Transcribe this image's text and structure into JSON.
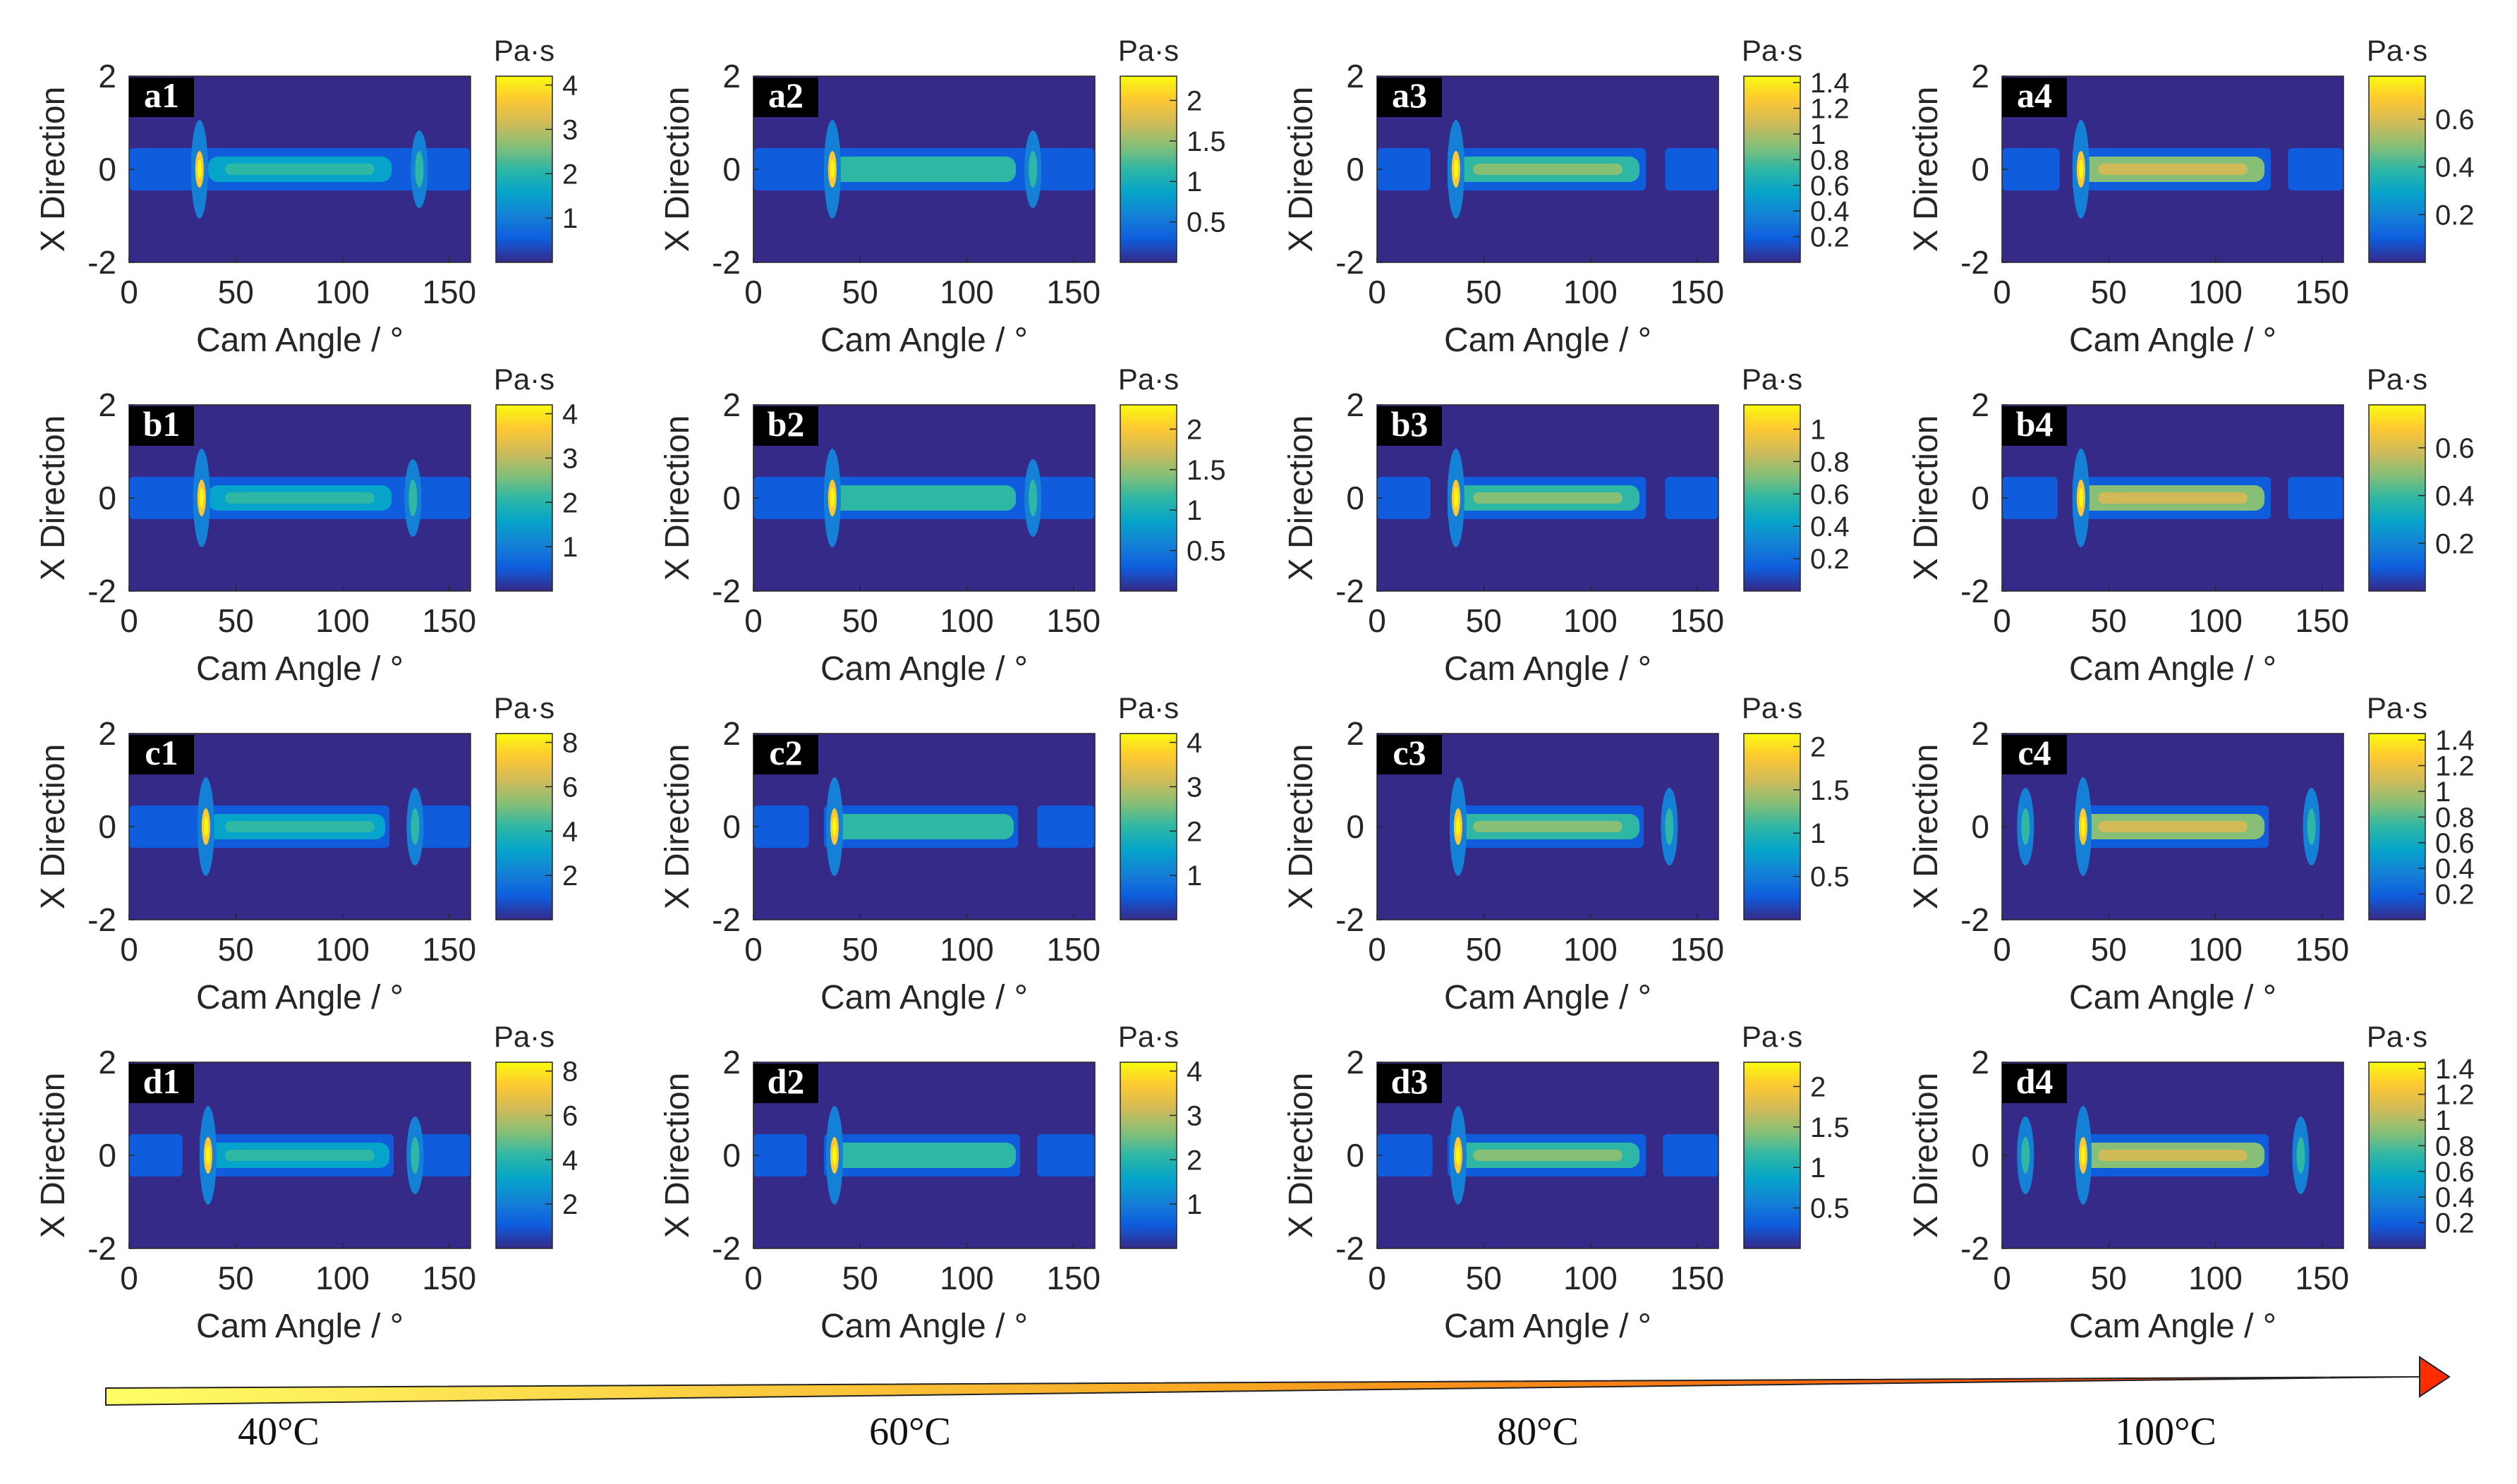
{
  "chart_data": [
    {
      "type": "heatmap",
      "panel_label": "a1",
      "xlabel": "Cam Angle / °",
      "ylabel": "X Direction",
      "xlim": [
        0,
        160
      ],
      "ylim": [
        -2,
        2
      ],
      "x_ticks": [
        "0",
        "50",
        "100",
        "150"
      ],
      "y_ticks": [
        "2",
        "0",
        "-2"
      ],
      "colorbar": {
        "unit": "Pa·s",
        "range": [
          0,
          4.2
        ],
        "ticks": [
          "4",
          "3",
          "2",
          "1"
        ]
      },
      "features": {
        "band": [
          0,
          160
        ],
        "groove_gaps": [],
        "peak_angles": [
          33,
          136
        ]
      }
    },
    {
      "type": "heatmap",
      "panel_label": "a2",
      "xlabel": "Cam Angle / °",
      "ylabel": "X Direction",
      "xlim": [
        0,
        160
      ],
      "ylim": [
        -2,
        2
      ],
      "x_ticks": [
        "0",
        "50",
        "100",
        "150"
      ],
      "y_ticks": [
        "2",
        "0",
        "-2"
      ],
      "colorbar": {
        "unit": "Pa·s",
        "range": [
          0,
          2.3
        ],
        "ticks": [
          "2",
          "1.5",
          "1",
          "0.5"
        ]
      },
      "features": {
        "band": [
          0,
          160
        ],
        "groove_gaps": [],
        "peak_angles": [
          37,
          131
        ]
      }
    },
    {
      "type": "heatmap",
      "panel_label": "a3",
      "xlabel": "Cam Angle / °",
      "ylabel": "X Direction",
      "xlim": [
        0,
        160
      ],
      "ylim": [
        -2,
        2
      ],
      "x_ticks": [
        "0",
        "50",
        "100",
        "150"
      ],
      "y_ticks": [
        "2",
        "0",
        "-2"
      ],
      "colorbar": {
        "unit": "Pa·s",
        "range": [
          0,
          1.45
        ],
        "ticks": [
          "1.4",
          "1.2",
          "1",
          "0.8",
          "0.6",
          "0.4",
          "0.2"
        ]
      },
      "features": {
        "band": [
          0,
          160
        ],
        "groove_gaps": [
          [
            25,
            33
          ],
          [
            126,
            135
          ]
        ],
        "peak_angles": [
          37
        ]
      }
    },
    {
      "type": "heatmap",
      "panel_label": "a4",
      "xlabel": "Cam Angle / °",
      "ylabel": "X Direction",
      "xlim": [
        0,
        160
      ],
      "ylim": [
        -2,
        2
      ],
      "x_ticks": [
        "0",
        "50",
        "100",
        "150"
      ],
      "y_ticks": [
        "2",
        "0",
        "-2"
      ],
      "colorbar": {
        "unit": "Pa·s",
        "range": [
          0,
          0.78
        ],
        "ticks": [
          "0.6",
          "0.4",
          "0.2"
        ]
      },
      "features": {
        "band": [
          0,
          160
        ],
        "groove_gaps": [
          [
            27,
            33
          ],
          [
            126,
            134
          ]
        ],
        "peak_angles": [
          37
        ]
      }
    },
    {
      "type": "heatmap",
      "panel_label": "b1",
      "xlabel": "Cam Angle / °",
      "ylabel": "X Direction",
      "xlim": [
        0,
        160
      ],
      "ylim": [
        -2,
        2
      ],
      "x_ticks": [
        "0",
        "50",
        "100",
        "150"
      ],
      "y_ticks": [
        "2",
        "0",
        "-2"
      ],
      "colorbar": {
        "unit": "Pa·s",
        "range": [
          0,
          4.2
        ],
        "ticks": [
          "4",
          "3",
          "2",
          "1"
        ]
      },
      "features": {
        "band": [
          0,
          160
        ],
        "groove_gaps": [],
        "peak_angles": [
          34,
          133
        ]
      }
    },
    {
      "type": "heatmap",
      "panel_label": "b2",
      "xlabel": "Cam Angle / °",
      "ylabel": "X Direction",
      "xlim": [
        0,
        160
      ],
      "ylim": [
        -2,
        2
      ],
      "x_ticks": [
        "0",
        "50",
        "100",
        "150"
      ],
      "y_ticks": [
        "2",
        "0",
        "-2"
      ],
      "colorbar": {
        "unit": "Pa·s",
        "range": [
          0,
          2.3
        ],
        "ticks": [
          "2",
          "1.5",
          "1",
          "0.5"
        ]
      },
      "features": {
        "band": [
          0,
          160
        ],
        "groove_gaps": [],
        "peak_angles": [
          37,
          131
        ]
      }
    },
    {
      "type": "heatmap",
      "panel_label": "b3",
      "xlabel": "Cam Angle / °",
      "ylabel": "X Direction",
      "xlim": [
        0,
        160
      ],
      "ylim": [
        -2,
        2
      ],
      "x_ticks": [
        "0",
        "50",
        "100",
        "150"
      ],
      "y_ticks": [
        "2",
        "0",
        "-2"
      ],
      "colorbar": {
        "unit": "Pa·s",
        "range": [
          0,
          1.15
        ],
        "ticks": [
          "1",
          "0.8",
          "0.6",
          "0.4",
          "0.2"
        ]
      },
      "features": {
        "band": [
          0,
          160
        ],
        "groove_gaps": [
          [
            25,
            33
          ],
          [
            126,
            135
          ]
        ],
        "peak_angles": [
          37
        ]
      }
    },
    {
      "type": "heatmap",
      "panel_label": "b4",
      "xlabel": "Cam Angle / °",
      "ylabel": "X Direction",
      "xlim": [
        0,
        160
      ],
      "ylim": [
        -2,
        2
      ],
      "x_ticks": [
        "0",
        "50",
        "100",
        "150"
      ],
      "y_ticks": [
        "2",
        "0",
        "-2"
      ],
      "colorbar": {
        "unit": "Pa·s",
        "range": [
          0,
          0.78
        ],
        "ticks": [
          "0.6",
          "0.4",
          "0.2"
        ]
      },
      "features": {
        "band": [
          0,
          160
        ],
        "groove_gaps": [
          [
            26,
            33
          ],
          [
            126,
            134
          ]
        ],
        "peak_angles": [
          37
        ]
      }
    },
    {
      "type": "heatmap",
      "panel_label": "c1",
      "xlabel": "Cam Angle / °",
      "ylabel": "X Direction",
      "xlim": [
        0,
        160
      ],
      "ylim": [
        -2,
        2
      ],
      "x_ticks": [
        "0",
        "50",
        "100",
        "150"
      ],
      "y_ticks": [
        "2",
        "0",
        "-2"
      ],
      "colorbar": {
        "unit": "Pa·s",
        "range": [
          0,
          8.4
        ],
        "ticks": [
          "8",
          "6",
          "4",
          "2"
        ]
      },
      "features": {
        "band": [
          0,
          160
        ],
        "groove_gaps": [
          [
            122,
            132
          ]
        ],
        "peak_angles": [
          36,
          134
        ]
      }
    },
    {
      "type": "heatmap",
      "panel_label": "c2",
      "xlabel": "Cam Angle / °",
      "ylabel": "X Direction",
      "xlim": [
        0,
        160
      ],
      "ylim": [
        -2,
        2
      ],
      "x_ticks": [
        "0",
        "50",
        "100",
        "150"
      ],
      "y_ticks": [
        "2",
        "0",
        "-2"
      ],
      "colorbar": {
        "unit": "Pa·s",
        "range": [
          0,
          4.2
        ],
        "ticks": [
          "4",
          "3",
          "2",
          "1"
        ]
      },
      "features": {
        "band": [
          0,
          160
        ],
        "groove_gaps": [
          [
            26,
            33
          ],
          [
            124,
            133
          ]
        ],
        "peak_angles": [
          38
        ]
      }
    },
    {
      "type": "heatmap",
      "panel_label": "c3",
      "xlabel": "Cam Angle / °",
      "ylabel": "X Direction",
      "xlim": [
        0,
        160
      ],
      "ylim": [
        -2,
        2
      ],
      "x_ticks": [
        "0",
        "50",
        "100",
        "150"
      ],
      "y_ticks": [
        "2",
        "0",
        "-2"
      ],
      "colorbar": {
        "unit": "Pa·s",
        "range": [
          0,
          2.15
        ],
        "ticks": [
          "2",
          "1.5",
          "1",
          "0.5"
        ]
      },
      "features": {
        "band": [
          35,
          125
        ],
        "groove_gaps": [],
        "peak_angles": [
          38,
          137
        ]
      }
    },
    {
      "type": "heatmap",
      "panel_label": "c4",
      "xlabel": "Cam Angle / °",
      "ylabel": "X Direction",
      "xlim": [
        0,
        160
      ],
      "ylim": [
        -2,
        2
      ],
      "x_ticks": [
        "0",
        "50",
        "100",
        "150"
      ],
      "y_ticks": [
        "2",
        "0",
        "-2"
      ],
      "colorbar": {
        "unit": "Pa·s",
        "range": [
          0,
          1.45
        ],
        "ticks": [
          "1.4",
          "1.2",
          "1",
          "0.8",
          "0.6",
          "0.4",
          "0.2"
        ]
      },
      "features": {
        "band": [
          35,
          125
        ],
        "groove_gaps": [],
        "peak_angles": [
          38,
          11,
          145
        ]
      }
    },
    {
      "type": "heatmap",
      "panel_label": "d1",
      "xlabel": "Cam Angle / °",
      "ylabel": "X Direction",
      "xlim": [
        0,
        160
      ],
      "ylim": [
        -2,
        2
      ],
      "x_ticks": [
        "0",
        "50",
        "100",
        "150"
      ],
      "y_ticks": [
        "2",
        "0",
        "-2"
      ],
      "colorbar": {
        "unit": "Pa·s",
        "range": [
          0,
          8.4
        ],
        "ticks": [
          "8",
          "6",
          "4",
          "2"
        ]
      },
      "features": {
        "band": [
          0,
          160
        ],
        "groove_gaps": [
          [
            25,
            33
          ],
          [
            124,
            133
          ]
        ],
        "peak_angles": [
          37,
          134
        ]
      }
    },
    {
      "type": "heatmap",
      "panel_label": "d2",
      "xlabel": "Cam Angle / °",
      "ylabel": "X Direction",
      "xlim": [
        0,
        160
      ],
      "ylim": [
        -2,
        2
      ],
      "x_ticks": [
        "0",
        "50",
        "100",
        "150"
      ],
      "y_ticks": [
        "2",
        "0",
        "-2"
      ],
      "colorbar": {
        "unit": "Pa·s",
        "range": [
          0,
          4.2
        ],
        "ticks": [
          "4",
          "3",
          "2",
          "1"
        ]
      },
      "features": {
        "band": [
          0,
          160
        ],
        "groove_gaps": [
          [
            25,
            33
          ],
          [
            125,
            133
          ]
        ],
        "peak_angles": [
          38
        ]
      }
    },
    {
      "type": "heatmap",
      "panel_label": "d3",
      "xlabel": "Cam Angle / °",
      "ylabel": "X Direction",
      "xlim": [
        0,
        160
      ],
      "ylim": [
        -2,
        2
      ],
      "x_ticks": [
        "0",
        "50",
        "100",
        "150"
      ],
      "y_ticks": [
        "2",
        "0",
        "-2"
      ],
      "colorbar": {
        "unit": "Pa·s",
        "range": [
          0,
          2.3
        ],
        "ticks": [
          "2",
          "1.5",
          "1",
          "0.5"
        ]
      },
      "features": {
        "band": [
          0,
          160
        ],
        "groove_gaps": [
          [
            26,
            33
          ],
          [
            126,
            134
          ]
        ],
        "peak_angles": [
          38
        ]
      }
    },
    {
      "type": "heatmap",
      "panel_label": "d4",
      "xlabel": "Cam Angle / °",
      "ylabel": "X Direction",
      "xlim": [
        0,
        160
      ],
      "ylim": [
        -2,
        2
      ],
      "x_ticks": [
        "0",
        "50",
        "100",
        "150"
      ],
      "y_ticks": [
        "2",
        "0",
        "-2"
      ],
      "colorbar": {
        "unit": "Pa·s",
        "range": [
          0,
          1.45
        ],
        "ticks": [
          "1.4",
          "1.2",
          "1",
          "0.8",
          "0.6",
          "0.4",
          "0.2"
        ]
      },
      "features": {
        "band": [
          35,
          125
        ],
        "groove_gaps": [],
        "peak_angles": [
          38,
          11,
          140
        ]
      }
    }
  ],
  "temperature_axis": {
    "labels": [
      "40°C",
      "60°C",
      "80°C",
      "100°C"
    ],
    "arrow_colors": [
      "#ffff66",
      "#ff2a00"
    ]
  },
  "colormap": [
    "#352a87",
    "#0f5cdd",
    "#1481d6",
    "#06a4ca",
    "#2eb7a4",
    "#87bf77",
    "#d1bb59",
    "#fec832",
    "#f9fb0e"
  ]
}
